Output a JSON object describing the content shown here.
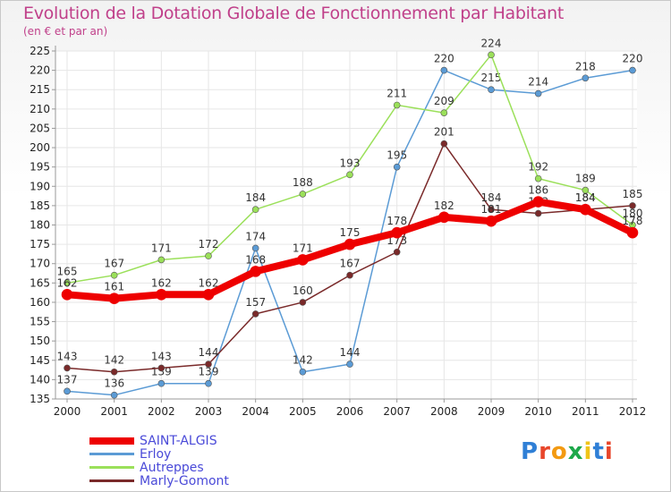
{
  "title": "Evolution de la Dotation Globale de Fonctionnement par Habitant",
  "subtitle": "(en € et par an)",
  "logo": "Proxiti",
  "colors": {
    "grid": "#e6e6e6",
    "axis": "#999999",
    "title": "#c0408a",
    "legend_text": "#4a4ad8"
  },
  "chart_data": {
    "type": "line",
    "title": "Evolution de la Dotation Globale de Fonctionnement par Habitant",
    "ylabel": "(en € et par an)",
    "xlabel": "",
    "ylim": [
      135,
      225
    ],
    "ytick_step": 5,
    "grid": true,
    "legend_position": "bottom-left",
    "x": [
      "2000",
      "2001",
      "2002",
      "2003",
      "2004",
      "2005",
      "2006",
      "2007",
      "2008",
      "2009",
      "2010",
      "2011",
      "2012"
    ],
    "series": [
      {
        "name": "SAINT-ALGIS",
        "color": "#ee0000",
        "width": 8,
        "values": [
          162,
          161,
          162,
          162,
          168,
          171,
          175,
          178,
          182,
          181,
          186,
          184,
          178
        ]
      },
      {
        "name": "Erloy",
        "color": "#5b9bd5",
        "width": 1.5,
        "values": [
          137,
          136,
          139,
          139,
          174,
          142,
          144,
          195,
          220,
          215,
          214,
          218,
          220
        ]
      },
      {
        "name": "Autreppes",
        "color": "#9be05a",
        "width": 1.5,
        "values": [
          165,
          167,
          171,
          172,
          184,
          188,
          193,
          211,
          209,
          224,
          192,
          189,
          180
        ]
      },
      {
        "name": "Marly-Gomont",
        "color": "#7a2a2a",
        "width": 1.5,
        "values": [
          143,
          142,
          143,
          144,
          157,
          160,
          167,
          173,
          201,
          184,
          183,
          184,
          185
        ]
      }
    ]
  }
}
